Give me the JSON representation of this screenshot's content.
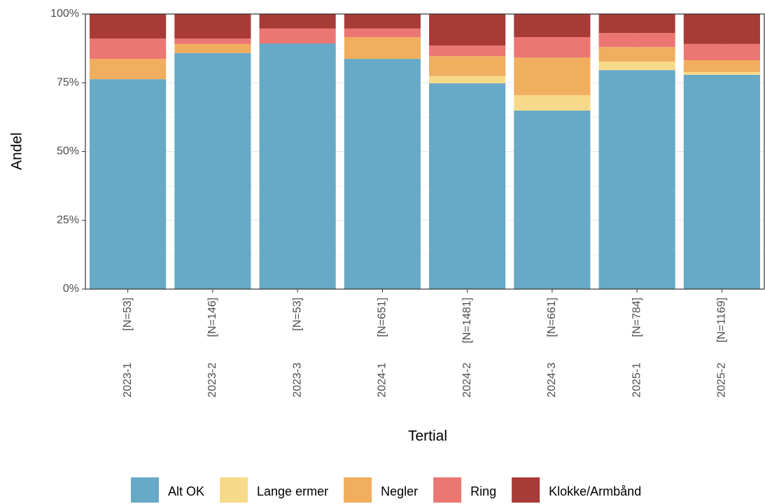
{
  "chart_data": {
    "type": "stacked_bar",
    "x_label": "Tertial",
    "y_label": "Andel",
    "categories": [
      "2023-1",
      "2023-2",
      "2023-3",
      "2024-1",
      "2024-2",
      "2024-3",
      "2025-1",
      "2025-2"
    ],
    "sample_sizes": [
      "[N=53]",
      "[N=146]",
      "[N=53]",
      "[N=651]",
      "[N=1481]",
      "[N=661]",
      "[N=784]",
      "[N=1169]"
    ],
    "series": [
      {
        "name": "Alt OK",
        "color": "#67a9c6",
        "values": [
          76.3,
          85.8,
          89.3,
          83.7,
          74.8,
          64.9,
          79.6,
          77.9
        ]
      },
      {
        "name": "Lange ermer",
        "color": "#f7da89",
        "values": [
          0,
          0,
          0,
          0,
          2.6,
          5.6,
          3.1,
          1.0
        ]
      },
      {
        "name": "Negler",
        "color": "#f0ae5e",
        "values": [
          7.4,
          3.3,
          0,
          7.9,
          7.3,
          13.7,
          5.3,
          4.3
        ]
      },
      {
        "name": "Ring",
        "color": "#ec7672",
        "values": [
          7.4,
          2.0,
          5.4,
          3.1,
          3.8,
          7.4,
          5.1,
          5.9
        ]
      },
      {
        "name": "Klokke/Armbånd",
        "color": "#a83a37",
        "values": [
          8.9,
          8.9,
          5.3,
          5.3,
          11.5,
          8.4,
          6.9,
          10.9
        ]
      }
    ],
    "ylim": [
      0,
      100
    ],
    "yticks": [
      {
        "value": 0,
        "label": "0%"
      },
      {
        "value": 25,
        "label": "25%"
      },
      {
        "value": 50,
        "label": "50%"
      },
      {
        "value": 75,
        "label": "75%"
      },
      {
        "value": 100,
        "label": "100%"
      }
    ],
    "grid": true,
    "legend_position": "bottom"
  }
}
